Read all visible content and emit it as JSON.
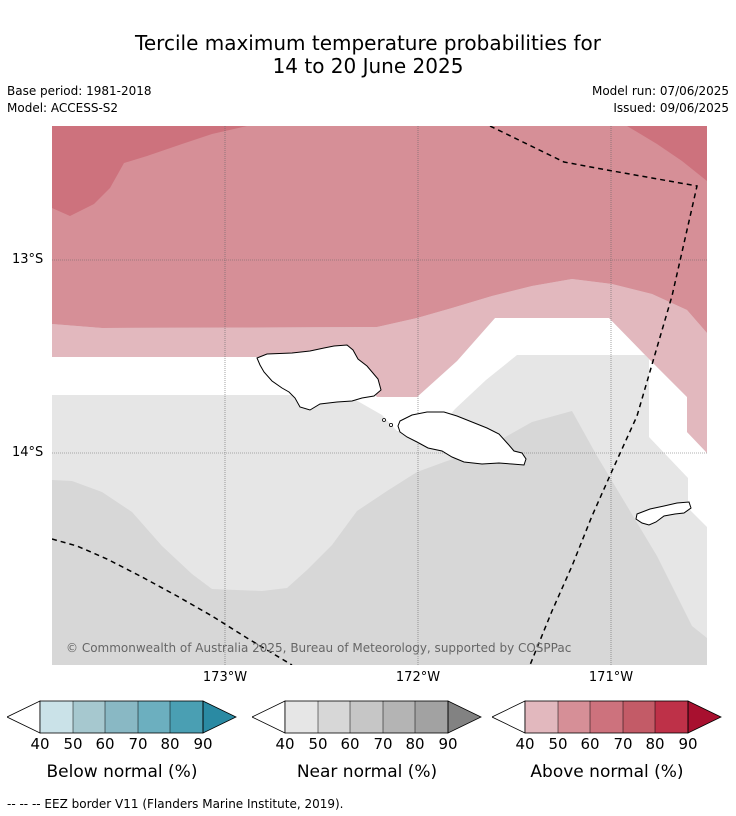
{
  "title_line1": "Tercile maximum temperature probabilities for",
  "title_line2": "14 to 20 June 2025",
  "base_period": "Base period: 1981-2018",
  "model": "Model: ACCESS-S2",
  "model_run": "Model run: 07/06/2025",
  "issued": "Issued: 09/06/2025",
  "lat_labels": [
    "13°S",
    "14°S"
  ],
  "lon_labels": [
    "173°W",
    "172°W",
    "171°W"
  ],
  "copyright": "© Commonwealth of Australia 2025, Bureau of Meteorology, supported by COSPPac",
  "legends": [
    {
      "title": "Below normal (%)",
      "ticks": [
        "40",
        "50",
        "60",
        "70",
        "80",
        "90"
      ],
      "colors": [
        "#ffffff",
        "#cae2e8",
        "#a6c8cf",
        "#89b8c4",
        "#6cafbf",
        "#4a9fb3",
        "#2a8aa3"
      ]
    },
    {
      "title": "Near normal (%)",
      "ticks": [
        "40",
        "50",
        "60",
        "70",
        "80",
        "90"
      ],
      "colors": [
        "#ffffff",
        "#e6e6e6",
        "#d7d7d7",
        "#c6c6c6",
        "#b4b4b4",
        "#a2a2a2",
        "#828282"
      ]
    },
    {
      "title": "Above normal (%)",
      "ticks": [
        "40",
        "50",
        "60",
        "70",
        "80",
        "90"
      ],
      "colors": [
        "#ffffff",
        "#e2b8be",
        "#d68f97",
        "#cd727d",
        "#c35b67",
        "#be3148",
        "#a8102f"
      ]
    }
  ],
  "footnote": "--  --  -- EEZ border V11 (Flanders Marine Institute, 2019).",
  "map_colors": {
    "above_70": "#cd727d",
    "above_60": "#d68f97",
    "above_50": "#e2b8be",
    "neutral": "#ffffff",
    "near_50": "#e6e6e6",
    "near_60": "#d7d7d7"
  }
}
